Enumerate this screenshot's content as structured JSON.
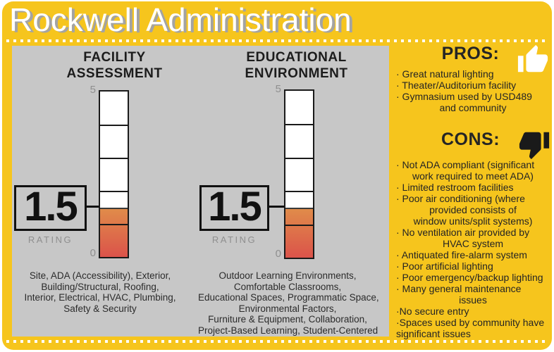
{
  "title": "Rockwell Administration",
  "colors": {
    "card_yellow": "#F6C51D",
    "panel_gray": "#C7C7C7",
    "gauge_fill_top_orange": "#E08B4A",
    "gauge_fill_bottom_red": "#DB534A",
    "text_dark": "#1c1c1c",
    "muted_gray": "#8f8f8f",
    "title_white": "#ffffff",
    "title_shadow_gray": "#a3a3a3",
    "pros_thumb_white": "#ffffff",
    "cons_thumb_black": "#1a1a1a"
  },
  "gauges": [
    {
      "id": "facility",
      "title_lines": [
        "FACILITY",
        "ASSESSMENT"
      ],
      "rating": "1.5",
      "rating_label": "RATING",
      "scale_max": "5",
      "scale_min": "0",
      "items_lines": [
        "Site, ADA (Accessibility), Exterior,",
        "Building/Structural, Roofing,",
        "Interior, Electrical, HVAC, Plumbing,",
        "Safety & Security"
      ]
    },
    {
      "id": "educational",
      "title_lines": [
        "EDUCATIONAL",
        "ENVIRONMENT"
      ],
      "rating": "1.5",
      "rating_label": "RATING",
      "scale_max": "5",
      "scale_min": "0",
      "items_lines": [
        "Outdoor Learning Environments,",
        "Comfortable Classrooms,",
        "Educational Spaces, Programmatic Space,",
        "Environmental Factors,",
        "Furniture & Equipment, Collaboration,",
        "Project-Based Learning, Student-Centered"
      ]
    }
  ],
  "pros": {
    "heading": "PROS:",
    "icon": "thumb-up-icon",
    "lines": [
      {
        "text": "· Great natural lighting",
        "align": "left"
      },
      {
        "text": "· Theater/Auditorium facility",
        "align": "left"
      },
      {
        "text": "· Gymnasium used by USD489",
        "align": "left"
      },
      {
        "text": "and community",
        "align": "center"
      }
    ]
  },
  "cons": {
    "heading": "CONS:",
    "icon": "thumb-down-icon",
    "lines": [
      {
        "text": "· Not ADA compliant (significant",
        "align": "left"
      },
      {
        "text": "work required to meet ADA)",
        "align": "center"
      },
      {
        "text": "· Limited restroom facilities",
        "align": "left"
      },
      {
        "text": "· Poor air conditioning (where",
        "align": "left"
      },
      {
        "text": "provided consists of",
        "align": "center"
      },
      {
        "text": "window units/split systems)",
        "align": "center"
      },
      {
        "text": "· No ventilation air provided by",
        "align": "left"
      },
      {
        "text": "HVAC system",
        "align": "center"
      },
      {
        "text": "· Antiquated fire-alarm system",
        "align": "left"
      },
      {
        "text": "· Poor artificial lighting",
        "align": "left"
      },
      {
        "text": "· Poor emergency/backup lighting",
        "align": "left"
      },
      {
        "text": "· Many general maintenance",
        "align": "left"
      },
      {
        "text": "issues",
        "align": "center"
      },
      {
        "text": "·No secure entry",
        "align": "left"
      },
      {
        "text": "·Spaces used by community have",
        "align": "left"
      },
      {
        "text": "significant issues",
        "align": "left"
      }
    ]
  },
  "chart_data": [
    {
      "type": "bar",
      "title": "FACILITY ASSESSMENT",
      "categories": [
        "FACILITY ASSESSMENT"
      ],
      "values": [
        1.5
      ],
      "ylim": [
        0,
        5
      ],
      "yticks": [
        "0",
        "5"
      ],
      "ylabel": "RATING",
      "segments": 5,
      "orientation": "vertical"
    },
    {
      "type": "bar",
      "title": "EDUCATIONAL ENVIRONMENT",
      "categories": [
        "EDUCATIONAL ENVIRONMENT"
      ],
      "values": [
        1.5
      ],
      "ylim": [
        0,
        5
      ],
      "yticks": [
        "0",
        "5"
      ],
      "ylabel": "RATING",
      "segments": 5,
      "orientation": "vertical"
    }
  ]
}
